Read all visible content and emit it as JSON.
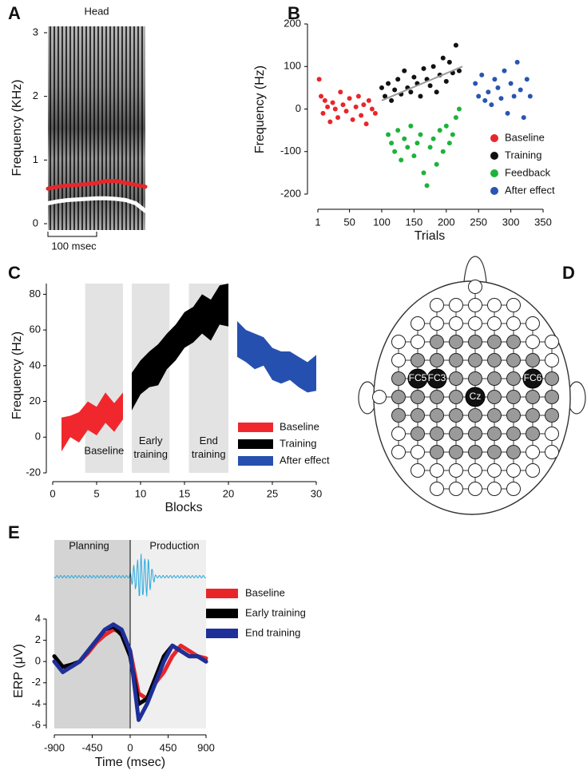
{
  "panel_labels": [
    "A",
    "B",
    "C",
    "D",
    "E"
  ],
  "chart_data": [
    {
      "type": "line",
      "title": "Head",
      "ylabel": "Frequency (KHz)",
      "ylim": [
        -0.1,
        3.1
      ],
      "yticks": [
        0,
        1,
        2,
        3
      ],
      "xlim": [
        0,
        200
      ],
      "x": [
        0,
        20,
        40,
        60,
        80,
        100,
        120,
        140,
        160,
        180,
        200
      ],
      "series": [
        {
          "color": "#e8262a",
          "values": [
            0.55,
            0.58,
            0.6,
            0.61,
            0.62,
            0.64,
            0.67,
            0.67,
            0.64,
            0.61,
            0.58
          ]
        },
        {
          "color": "#ffffff",
          "values": [
            0.32,
            0.35,
            0.37,
            0.38,
            0.39,
            0.4,
            0.4,
            0.39,
            0.37,
            0.32,
            0.2
          ]
        }
      ],
      "scale_bar": {
        "value": 100,
        "label": "100 msec"
      }
    },
    {
      "type": "scatter",
      "xlabel": "Trials",
      "ylabel": "Frequency (Hz)",
      "xlim": [
        1,
        350
      ],
      "ylim": [
        -200,
        200
      ],
      "xticks": [
        1,
        50,
        100,
        150,
        200,
        250,
        300,
        350
      ],
      "yticks": [
        -200,
        -100,
        0,
        100,
        200
      ],
      "series": [
        {
          "name": "Baseline",
          "color": "#e8262a",
          "x": [
            3,
            6,
            9,
            12,
            16,
            20,
            24,
            28,
            32,
            36,
            40,
            45,
            50,
            55,
            60,
            64,
            68,
            72,
            76,
            80,
            85,
            90
          ],
          "values": [
            70,
            30,
            -10,
            20,
            5,
            -30,
            15,
            0,
            -20,
            40,
            10,
            -5,
            25,
            -25,
            5,
            30,
            -15,
            10,
            -35,
            20,
            0,
            -10
          ]
        },
        {
          "name": "Training",
          "color": "#111111",
          "x": [
            100,
            105,
            110,
            115,
            120,
            125,
            130,
            135,
            140,
            145,
            150,
            155,
            160,
            165,
            170,
            175,
            180,
            185,
            190,
            195,
            200,
            205,
            210,
            215,
            220
          ],
          "values": [
            50,
            30,
            60,
            20,
            45,
            70,
            35,
            90,
            50,
            40,
            75,
            60,
            30,
            95,
            70,
            55,
            100,
            40,
            80,
            120,
            65,
            110,
            85,
            150,
            90
          ]
        },
        {
          "name": "Feedback",
          "color": "#1db33a",
          "x": [
            110,
            115,
            120,
            125,
            130,
            135,
            140,
            145,
            150,
            155,
            160,
            165,
            170,
            175,
            180,
            185,
            190,
            195,
            200,
            205,
            210,
            215,
            220
          ],
          "values": [
            -60,
            -80,
            -100,
            -50,
            -120,
            -70,
            -90,
            -40,
            -110,
            -80,
            -60,
            -150,
            -180,
            -90,
            -70,
            -130,
            -50,
            -100,
            -40,
            -80,
            -60,
            -20,
            0
          ]
        },
        {
          "name": "After effect",
          "color": "#2a55b0",
          "x": [
            245,
            250,
            255,
            260,
            265,
            270,
            275,
            280,
            285,
            290,
            295,
            300,
            305,
            310,
            315,
            320,
            325,
            330
          ],
          "values": [
            60,
            30,
            80,
            20,
            40,
            10,
            70,
            50,
            25,
            90,
            -10,
            60,
            30,
            110,
            45,
            -20,
            70,
            30
          ]
        }
      ],
      "trend": {
        "color": "#9a9a9a",
        "x": [
          100,
          225
        ],
        "values": [
          20,
          100
        ]
      }
    },
    {
      "type": "area",
      "xlabel": "Blocks",
      "ylabel": "Frequency (Hz)",
      "xlim": [
        0,
        30
      ],
      "ylim": [
        -20,
        86
      ],
      "xticks": [
        0,
        5,
        10,
        15,
        20,
        25,
        30
      ],
      "yticks": [
        -20,
        0,
        20,
        40,
        60,
        80
      ],
      "regions": [
        {
          "label": "Baseline",
          "x": [
            3.7,
            8
          ]
        },
        {
          "label": "Early training",
          "x": [
            9,
            13.3
          ]
        },
        {
          "label": "End training",
          "x": [
            15.5,
            20
          ]
        }
      ],
      "region_color": "#e3e3e3",
      "series": [
        {
          "name": "Baseline",
          "color": "#f0282d",
          "x": [
            1,
            2,
            3,
            4,
            5,
            6,
            7,
            8
          ],
          "low": [
            -8,
            0,
            -3,
            4,
            1,
            8,
            3,
            10
          ],
          "high": [
            11,
            12,
            14,
            20,
            17,
            25,
            19,
            25
          ]
        },
        {
          "name": "Training",
          "color": "#000000",
          "x": [
            9,
            10,
            11,
            12,
            13,
            14,
            15,
            16,
            17,
            18,
            19,
            20
          ],
          "low": [
            15,
            24,
            28,
            29,
            38,
            43,
            50,
            53,
            58,
            54,
            63,
            62
          ],
          "high": [
            36,
            43,
            48,
            52,
            58,
            63,
            70,
            73,
            80,
            77,
            85,
            86
          ]
        },
        {
          "name": "After effect",
          "color": "#2650b0",
          "x": [
            21,
            22,
            23,
            24,
            25,
            26,
            27,
            28,
            29,
            30
          ],
          "low": [
            45,
            42,
            38,
            40,
            32,
            30,
            32,
            28,
            25,
            26
          ],
          "high": [
            65,
            60,
            58,
            56,
            50,
            48,
            48,
            45,
            42,
            46
          ]
        }
      ]
    },
    {
      "type": "line",
      "xlabel": "Time (msec)",
      "ylabel": "ERP (μV)",
      "xlim": [
        -900,
        900
      ],
      "ylim": [
        -6.3,
        4
      ],
      "xticks": [
        -900,
        -450,
        0,
        450,
        900
      ],
      "yticks": [
        4,
        2,
        0,
        -2,
        -4,
        -6
      ],
      "onset": 0,
      "regions": [
        {
          "label": "Planning",
          "x": [
            -900,
            0
          ],
          "color": "#d4d4d4"
        },
        {
          "label": "Production",
          "x": [
            0,
            900
          ],
          "color": "#efefef"
        }
      ],
      "x": [
        -900,
        -800,
        -700,
        -600,
        -500,
        -400,
        -300,
        -200,
        -100,
        0,
        100,
        200,
        300,
        400,
        500,
        600,
        700,
        800,
        900
      ],
      "series": [
        {
          "name": "Baseline",
          "color": "#e8262a",
          "values": [
            0,
            -0.5,
            -0.5,
            0,
            0.8,
            1.8,
            2.5,
            3,
            2.8,
            1,
            -3,
            -3.5,
            -2,
            -1,
            0.5,
            1.5,
            1,
            0.5,
            0.3
          ]
        },
        {
          "name": "Early training",
          "color": "#000000",
          "values": [
            0.5,
            -0.5,
            -0.3,
            0,
            1,
            2,
            3,
            3.3,
            2.5,
            0.5,
            -4,
            -3.5,
            -1.5,
            0.5,
            1.5,
            1,
            0.5,
            0.5,
            0
          ]
        },
        {
          "name": "End training",
          "color": "#1f2f9a",
          "values": [
            0,
            -1,
            -0.5,
            0,
            1,
            2,
            3,
            3.5,
            3,
            1,
            -5.5,
            -4,
            -2,
            0,
            1.5,
            1,
            0.5,
            0.5,
            0
          ]
        }
      ]
    }
  ],
  "head_diagram": {
    "electrodes": [
      "FC5",
      "FC3",
      "FC6",
      "Cz"
    ]
  }
}
